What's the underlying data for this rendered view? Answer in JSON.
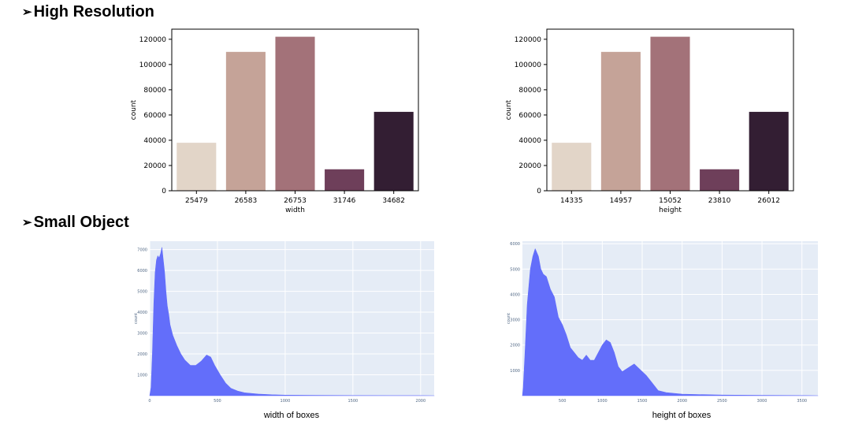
{
  "sections": [
    {
      "title": "High Resolution",
      "marker": "➢"
    },
    {
      "title": "Small Object",
      "marker": "➢"
    }
  ],
  "colors": {
    "bar_palette": [
      "#e2d5c8",
      "#c5a398",
      "#a37279",
      "#6e3f5a",
      "#331e33"
    ],
    "histogram_fill": "#636efa",
    "histogram_bg": "#e5ecf6"
  },
  "chart_data": [
    {
      "type": "bar",
      "categories": [
        "25479",
        "26583",
        "26753",
        "31746",
        "34682"
      ],
      "values": [
        38000,
        110000,
        122000,
        17000,
        62500
      ],
      "xlabel": "width",
      "ylabel": "count",
      "ylim": [
        0,
        128000
      ],
      "yticks": [
        0,
        20000,
        40000,
        60000,
        80000,
        100000,
        120000
      ],
      "grid": false
    },
    {
      "type": "bar",
      "categories": [
        "14335",
        "14957",
        "15052",
        "23810",
        "26012"
      ],
      "values": [
        38000,
        110000,
        122000,
        17000,
        62500
      ],
      "xlabel": "height",
      "ylabel": "count",
      "ylim": [
        0,
        128000
      ],
      "yticks": [
        0,
        20000,
        40000,
        60000,
        80000,
        100000,
        120000
      ],
      "grid": false
    },
    {
      "type": "area",
      "xlabel": "width of boxes",
      "ylabel": "count",
      "xlim": [
        0,
        2100
      ],
      "ylim": [
        0,
        7400
      ],
      "xticks": [
        0,
        500,
        1000,
        1500,
        2000
      ],
      "yticks": [
        1000,
        2000,
        3000,
        4000,
        5000,
        6000,
        7000
      ],
      "grid": true,
      "x": [
        0,
        10,
        20,
        30,
        40,
        50,
        60,
        70,
        80,
        90,
        100,
        110,
        120,
        130,
        140,
        150,
        170,
        200,
        230,
        260,
        300,
        340,
        380,
        420,
        450,
        480,
        520,
        560,
        600,
        650,
        700,
        800,
        900,
        1000,
        1200,
        1500,
        1800,
        2000,
        2100
      ],
      "y": [
        0,
        400,
        2000,
        4400,
        5900,
        6500,
        6700,
        6600,
        6800,
        7100,
        6500,
        5900,
        5000,
        4300,
        3900,
        3400,
        2900,
        2400,
        2000,
        1700,
        1450,
        1450,
        1650,
        1950,
        1850,
        1450,
        1000,
        600,
        350,
        220,
        140,
        80,
        45,
        25,
        15,
        8,
        5,
        3,
        0
      ]
    },
    {
      "type": "area",
      "xlabel": "height of boxes",
      "ylabel": "count",
      "xlim": [
        0,
        3700
      ],
      "ylim": [
        0,
        6100
      ],
      "xticks": [
        500,
        1000,
        1500,
        2000,
        2500,
        3000,
        3500
      ],
      "yticks": [
        1000,
        2000,
        3000,
        4000,
        5000,
        6000
      ],
      "grid": true,
      "x": [
        0,
        10,
        30,
        60,
        100,
        130,
        160,
        200,
        230,
        260,
        300,
        350,
        400,
        450,
        500,
        550,
        600,
        650,
        700,
        750,
        800,
        850,
        900,
        950,
        1000,
        1050,
        1100,
        1150,
        1200,
        1250,
        1300,
        1350,
        1400,
        1450,
        1500,
        1550,
        1600,
        1650,
        1700,
        1800,
        2000,
        2500,
        3000,
        3500,
        3700
      ],
      "y": [
        0,
        300,
        1500,
        3600,
        5000,
        5500,
        5800,
        5500,
        5000,
        4800,
        4700,
        4200,
        3900,
        3100,
        2800,
        2400,
        1900,
        1700,
        1500,
        1400,
        1600,
        1400,
        1400,
        1700,
        2000,
        2200,
        2100,
        1700,
        1150,
        950,
        1050,
        1150,
        1250,
        1100,
        950,
        800,
        600,
        400,
        200,
        120,
        60,
        25,
        12,
        5,
        0
      ]
    }
  ]
}
